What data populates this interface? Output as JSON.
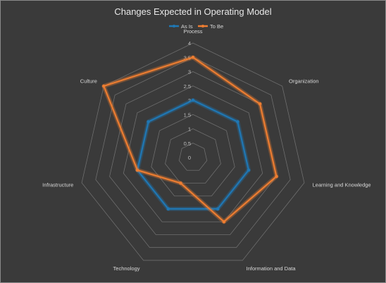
{
  "chart_data": {
    "type": "radar",
    "title": "Changes Expected in Operating Model",
    "categories": [
      "Process",
      "Organization",
      "Learning and Knowledge",
      "Information and Data",
      "Technology",
      "Infrastructure",
      "Culture"
    ],
    "rlim": [
      0,
      4
    ],
    "ticks": [
      "0",
      "0.5",
      "1",
      "1.5",
      "2",
      "2.5",
      "3",
      "3.5",
      "4"
    ],
    "grid": true,
    "legend_position": "top",
    "series": [
      {
        "name": "As Is",
        "color": "#1f77b4",
        "values": [
          2.0,
          2.0,
          2.0,
          2.0,
          2.0,
          2.0,
          2.0
        ]
      },
      {
        "name": "To Be",
        "color": "#ed7d31",
        "values": [
          3.5,
          3.0,
          3.0,
          2.5,
          1.0,
          2.0,
          4.0
        ]
      }
    ]
  }
}
